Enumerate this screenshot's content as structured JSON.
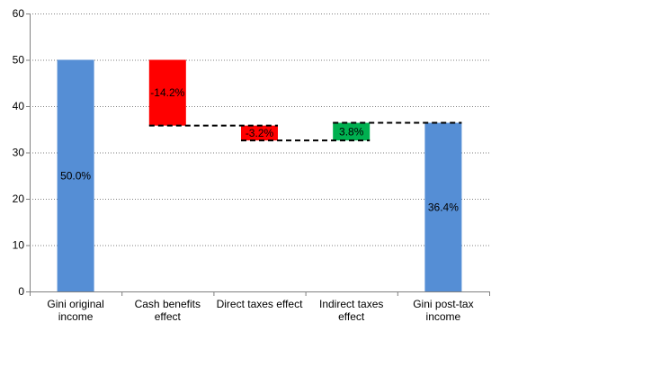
{
  "chart_data": {
    "type": "bar",
    "subtype": "waterfall",
    "categories": [
      [
        "Gini original",
        "income"
      ],
      [
        "Cash benefits",
        "effect"
      ],
      [
        "Direct taxes effect"
      ],
      [
        "Indirect taxes",
        "effect"
      ],
      [
        "Gini post-tax",
        "income"
      ]
    ],
    "bars": [
      {
        "kind": "total",
        "start": 0,
        "end": 50.0,
        "label": "50.0%",
        "color": "#558ED5"
      },
      {
        "kind": "delta",
        "start": 50.0,
        "end": 35.8,
        "label": "-14.2%",
        "color": "#FF0000"
      },
      {
        "kind": "delta",
        "start": 35.8,
        "end": 32.6,
        "label": "-3.2%",
        "color": "#FF0000"
      },
      {
        "kind": "delta",
        "start": 32.6,
        "end": 36.4,
        "label": "3.8%",
        "color": "#00B050"
      },
      {
        "kind": "total",
        "start": 0,
        "end": 36.4,
        "label": "36.4%",
        "color": "#558ED5"
      }
    ],
    "connectors": [
      {
        "from": 1,
        "to": 2,
        "value": 35.8
      },
      {
        "from": 2,
        "to": 3,
        "value": 32.6
      },
      {
        "from": 3,
        "to": 4,
        "value": 36.4
      }
    ],
    "ylim": [
      0,
      60
    ],
    "yticks": [
      0,
      10,
      20,
      30,
      40,
      50,
      60
    ],
    "grid": "horizontal-dotted",
    "xlabel": "",
    "ylabel": "",
    "title": ""
  }
}
